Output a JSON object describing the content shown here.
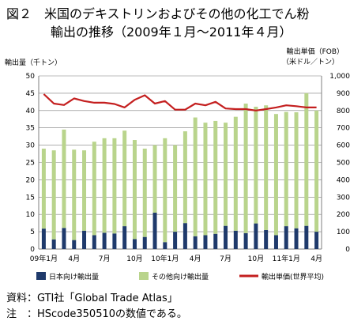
{
  "title": {
    "line1": "図２　米国のデキストリンおよびその他の化工でん粉",
    "line2": "輸出の推移（2009年１月～2011年４月）"
  },
  "axes": {
    "left_title": "輸出量（千トン）",
    "right_title_line1": "輸出単価（FOB）",
    "right_title_line2": "（米ドル／トン）"
  },
  "footnotes": {
    "source": "資料：GTI社「Global Trade Atlas」",
    "note": "注　：HScode350510の数値である。"
  },
  "colors": {
    "japan_bar": "#1f3a6b",
    "other_bar": "#b9d48c",
    "unit_price_line": "#c41f1f",
    "grid": "#7f7f7f"
  },
  "chart_data": {
    "type": "bar",
    "stacked": true,
    "x_tick_labels": [
      "09年1月",
      "4月",
      "7月",
      "10月",
      "10年1月",
      "4月",
      "7月",
      "10月",
      "11年1月",
      "4月"
    ],
    "categories": [
      "2009-01",
      "2009-02",
      "2009-03",
      "2009-04",
      "2009-05",
      "2009-06",
      "2009-07",
      "2009-08",
      "2009-09",
      "2009-10",
      "2009-11",
      "2009-12",
      "2010-01",
      "2010-02",
      "2010-03",
      "2010-04",
      "2010-05",
      "2010-06",
      "2010-07",
      "2010-08",
      "2010-09",
      "2010-10",
      "2010-11",
      "2010-12",
      "2011-01",
      "2011-02",
      "2011-03",
      "2011-04"
    ],
    "ylim_left": [
      0,
      50
    ],
    "yticks_left": [
      "0",
      "5",
      "10",
      "15",
      "20",
      "25",
      "30",
      "35",
      "40",
      "45",
      "50"
    ],
    "ylim_right": [
      0,
      1000
    ],
    "yticks_right": [
      "0",
      "100",
      "200",
      "300",
      "400",
      "500",
      "600",
      "700",
      "800",
      "900",
      "1,000"
    ],
    "grid": true,
    "legend_position": "bottom",
    "series": [
      {
        "name": "日本向け輸出量",
        "kind": "bar",
        "axis": "left",
        "values": [
          5.9,
          2.8,
          6.1,
          2.6,
          5.3,
          4.0,
          4.7,
          4.5,
          6.6,
          2.9,
          3.5,
          10.5,
          2.0,
          5.0,
          7.5,
          3.7,
          4.0,
          4.4,
          6.7,
          5.3,
          4.6,
          7.4,
          5.5,
          4.0,
          6.6,
          6.0,
          6.7,
          5.0
        ]
      },
      {
        "name": "その他向け輸出量",
        "kind": "bar",
        "axis": "left",
        "values": [
          23.1,
          25.7,
          28.4,
          26.1,
          23.2,
          27.0,
          27.3,
          27.5,
          27.6,
          28.6,
          25.5,
          19.5,
          30.0,
          25.0,
          26.5,
          34.3,
          32.5,
          32.6,
          29.8,
          32.9,
          37.4,
          33.7,
          36.0,
          35.0,
          33.0,
          33.5,
          38.3,
          35.0
        ]
      },
      {
        "name": "輸出単価(世界平均)",
        "kind": "line",
        "axis": "right",
        "values": [
          895,
          840,
          832,
          870,
          855,
          845,
          845,
          838,
          818,
          862,
          888,
          840,
          855,
          805,
          805,
          840,
          830,
          850,
          812,
          808,
          808,
          800,
          808,
          818,
          830,
          825,
          818,
          818
        ]
      }
    ]
  }
}
